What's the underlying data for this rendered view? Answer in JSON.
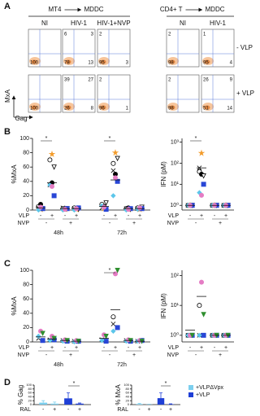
{
  "figure": {
    "donors": [
      {
        "marker": "circle",
        "color": "#000000",
        "filled": false
      },
      {
        "marker": "circle",
        "color": "#000000",
        "filled": true
      },
      {
        "marker": "triangle",
        "color": "#000000",
        "filled": false
      },
      {
        "marker": "cross",
        "color": "#000000",
        "filled": false
      },
      {
        "marker": "star",
        "color": "#f39c2b",
        "filled": true
      },
      {
        "marker": "square",
        "color": "#2846d6",
        "filled": true
      },
      {
        "marker": "diamond",
        "color": "#5cc6ea",
        "filled": true
      },
      {
        "marker": "circle",
        "color": "#e47cc4",
        "filled": true
      },
      {
        "marker": "triangle",
        "color": "#2f8f2f",
        "filled": true
      }
    ],
    "A": {
      "label": "A",
      "groups": [
        {
          "title": "MT4",
          "target": "MDDC",
          "columns": [
            "NI",
            "HIV-1",
            "HIV-1+NVP"
          ]
        },
        {
          "title": "CD4+ T",
          "target": "MDDC",
          "columns": [
            "NI",
            "HIV-1"
          ]
        }
      ],
      "rows": [
        "- VLP",
        "+ VLP"
      ],
      "y_axis": "MxA",
      "x_axis": "Gag",
      "plots": [
        [
          {
            "bl": 100
          },
          {
            "tl": 6,
            "tr": 3,
            "bl": 78,
            "br": 13
          },
          {
            "tl": 2,
            "bl": 95,
            "br": 3
          },
          {
            "tl": 2,
            "bl": 98
          },
          {
            "tl": 1,
            "bl": 95,
            "br": 4
          }
        ],
        [
          {
            "bl": 100
          },
          {
            "tl": 39,
            "tr": 27,
            "bl": 26,
            "br": 8
          },
          {
            "tl": 2,
            "bl": 96,
            "br": 1
          },
          {
            "tl": 2,
            "bl": 98
          },
          {
            "tl": 26,
            "tr": 9,
            "bl": 51,
            "br": 14
          }
        ]
      ]
    },
    "B": {
      "label": "B",
      "left": {
        "ylabel": "%MxA",
        "log": false,
        "ylim": [
          0,
          100
        ],
        "yticks": [
          0,
          20,
          40,
          60,
          80,
          100
        ],
        "groups": [
          {
            "values": [
              5,
              8,
              2,
              3,
              1,
              2,
              0,
              4,
              null
            ],
            "mean": 3
          },
          {
            "values": [
              70,
              38,
              60,
              35,
              78,
              20,
              35,
              33,
              null
            ],
            "mean": 38
          },
          {
            "values": [
              2,
              1,
              2,
              3,
              1,
              2,
              0,
              1,
              null
            ],
            "mean": 2
          },
          {
            "values": [
              3,
              2,
              1,
              2,
              1,
              3,
              0,
              2,
              null
            ],
            "mean": 2
          },
          {
            "values": [
              8,
              5,
              10,
              3,
              2,
              1,
              6,
              4,
              null
            ],
            "mean": 5
          },
          {
            "values": [
              65,
              50,
              72,
              55,
              80,
              40,
              20,
              45,
              null
            ],
            "mean": 42
          },
          {
            "values": [
              2,
              3,
              1,
              2,
              1,
              2,
              0,
              1,
              null
            ],
            "mean": 2
          },
          {
            "values": [
              3,
              2,
              4,
              2,
              1,
              2,
              1,
              3,
              null
            ],
            "mean": 2
          }
        ],
        "stars": [
          "*",
          "*"
        ],
        "vlp_label": "VLP",
        "vlp": [
          "-",
          "+",
          "-",
          "+",
          "-",
          "+",
          "-",
          "+"
        ],
        "nvp_label": "NVP",
        "nvp": [
          "-",
          "+",
          "-",
          "+"
        ],
        "times": [
          "48h",
          "72h"
        ]
      },
      "right": {
        "ylabel": "IFN (pM)",
        "log": true,
        "ylim": [
          0.6,
          1500
        ],
        "yticks": [
          {
            "value": 1,
            "label": "10⁰"
          },
          {
            "value": 10,
            "label": "10¹"
          },
          {
            "value": 100,
            "label": "10²"
          },
          {
            "value": 1000,
            "label": "10³"
          }
        ],
        "groups": [
          {
            "values": [
              1,
              1,
              1,
              1,
              1,
              1,
              1,
              1,
              null
            ],
            "mean": 1
          },
          {
            "values": [
              40,
              30,
              25,
              60,
              300,
              10,
              4,
              3,
              null
            ],
            "mean": 60
          },
          {
            "values": [
              1,
              1,
              1,
              1,
              1,
              1,
              1,
              1,
              null
            ],
            "mean": 1
          },
          {
            "values": [
              1,
              1,
              1,
              1,
              1,
              1,
              1,
              1,
              null
            ],
            "mean": 1
          }
        ],
        "stars": [
          "*"
        ],
        "vlp_label": "VLP",
        "vlp": [
          "-",
          "+",
          "-",
          "+"
        ],
        "nvp_label": "NVP",
        "nvp": [
          "-",
          "+"
        ]
      }
    },
    "C": {
      "label": "C",
      "left": {
        "ylabel": "%MxA",
        "log": false,
        "ylim": [
          0,
          100
        ],
        "yticks": [
          0,
          20,
          40,
          60,
          80,
          100
        ],
        "groups": [
          {
            "values": [
              null,
              null,
              null,
              5,
              null,
              2,
              8,
              15,
              12
            ],
            "mean": 7
          },
          {
            "values": [
              null,
              null,
              null,
              3,
              null,
              3,
              2,
              8,
              5
            ],
            "mean": 4
          },
          {
            "values": [
              null,
              null,
              null,
              2,
              null,
              1,
              1,
              3,
              2
            ],
            "mean": 2
          },
          {
            "values": [
              null,
              null,
              null,
              1,
              null,
              1,
              0,
              2,
              1
            ],
            "mean": 1
          },
          {
            "values": [
              null,
              null,
              null,
              3,
              null,
              1,
              2,
              10,
              8
            ],
            "mean": 5
          },
          {
            "values": [
              35,
              null,
              null,
              25,
              null,
              20,
              15,
              95,
              100
            ],
            "mean": 45
          },
          {
            "values": [
              null,
              null,
              null,
              2,
              null,
              1,
              1,
              3,
              2
            ],
            "mean": 2
          },
          {
            "values": [
              null,
              null,
              null,
              1,
              null,
              2,
              1,
              2,
              1
            ],
            "mean": 1
          }
        ],
        "stars": [
          "*"
        ],
        "vlp_label": "VLP",
        "vlp": [
          "-",
          "+",
          "-",
          "+",
          "-",
          "+",
          "-",
          "+"
        ],
        "nvp_label": "NVP",
        "nvp": [
          "-",
          "+",
          "-",
          "+"
        ],
        "times": [
          "48h",
          "72h"
        ]
      },
      "right": {
        "ylabel": "IFN (pM)",
        "log": true,
        "ylim": [
          0.6,
          150
        ],
        "yticks": [
          {
            "value": 1,
            "label": "10⁰"
          },
          {
            "value": 10,
            "label": "10¹"
          },
          {
            "value": 100,
            "label": "10²"
          }
        ],
        "groups": [
          {
            "values": [
              1,
              null,
              null,
              1,
              null,
              1,
              1,
              1,
              1
            ],
            "mean": 1.5
          },
          {
            "values": [
              10,
              null,
              null,
              1,
              null,
              1,
              1,
              60,
              5
            ],
            "mean": 20
          },
          {
            "values": [
              1,
              null,
              null,
              1,
              null,
              1,
              1,
              1,
              1
            ],
            "mean": 1
          },
          {
            "values": [
              1,
              null,
              null,
              1,
              null,
              1,
              1,
              1,
              1
            ],
            "mean": 1
          }
        ],
        "stars": [],
        "vlp_label": "VLP",
        "vlp": [
          "-",
          "+",
          "-",
          "+"
        ],
        "nvp_label": "NVP",
        "nvp": [
          "-",
          "+"
        ]
      }
    },
    "D": {
      "label": "D",
      "gag": {
        "ylabel": "% Gag",
        "ylim": [
          0,
          100
        ],
        "yticks": [
          0,
          20,
          40,
          60,
          80,
          100
        ],
        "xlabel": "RAL",
        "categories": [
          "-",
          "+"
        ],
        "stars": [
          "*"
        ],
        "series": [
          {
            "name": "+VLPΔVpx",
            "color": "#7ccfee",
            "values": [
              10,
              5
            ],
            "errors": [
              10,
              8
            ]
          },
          {
            "name": "+VLP",
            "color": "#1f3fd6",
            "values": [
              32,
              5
            ],
            "errors": [
              28,
              3
            ]
          }
        ]
      },
      "mxa": {
        "ylabel": "% MxA",
        "ylim": [
          0,
          100
        ],
        "yticks": [
          0,
          20,
          40,
          60,
          80,
          100
        ],
        "xlabel": "RAL",
        "categories": [
          "-",
          "+"
        ],
        "stars": [
          "*"
        ],
        "series": [
          {
            "name": "+VLPΔVpx",
            "color": "#7ccfee",
            "values": [
              3,
              1
            ],
            "errors": [
              3,
              1
            ]
          },
          {
            "name": "+VLP",
            "color": "#1f3fd6",
            "values": [
              33,
              2
            ],
            "errors": [
              27,
              2
            ]
          }
        ]
      }
    }
  }
}
